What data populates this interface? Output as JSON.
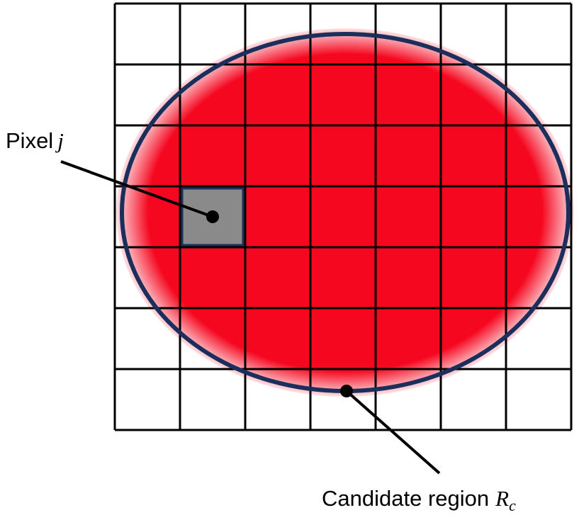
{
  "grid": {
    "columns": 7,
    "rows": 7,
    "line_color": "#000000"
  },
  "region": {
    "fill_color": "#f5071f",
    "outline_color": "#1c2f5c"
  },
  "highlighted_pixel": {
    "column": 2,
    "row": 4,
    "fill_color": "#8a8a8a"
  },
  "labels": {
    "pixel": {
      "text": "Pixel",
      "symbol": "j"
    },
    "region": {
      "text": "Candidate region",
      "symbol": "R",
      "subscript": "c"
    }
  }
}
